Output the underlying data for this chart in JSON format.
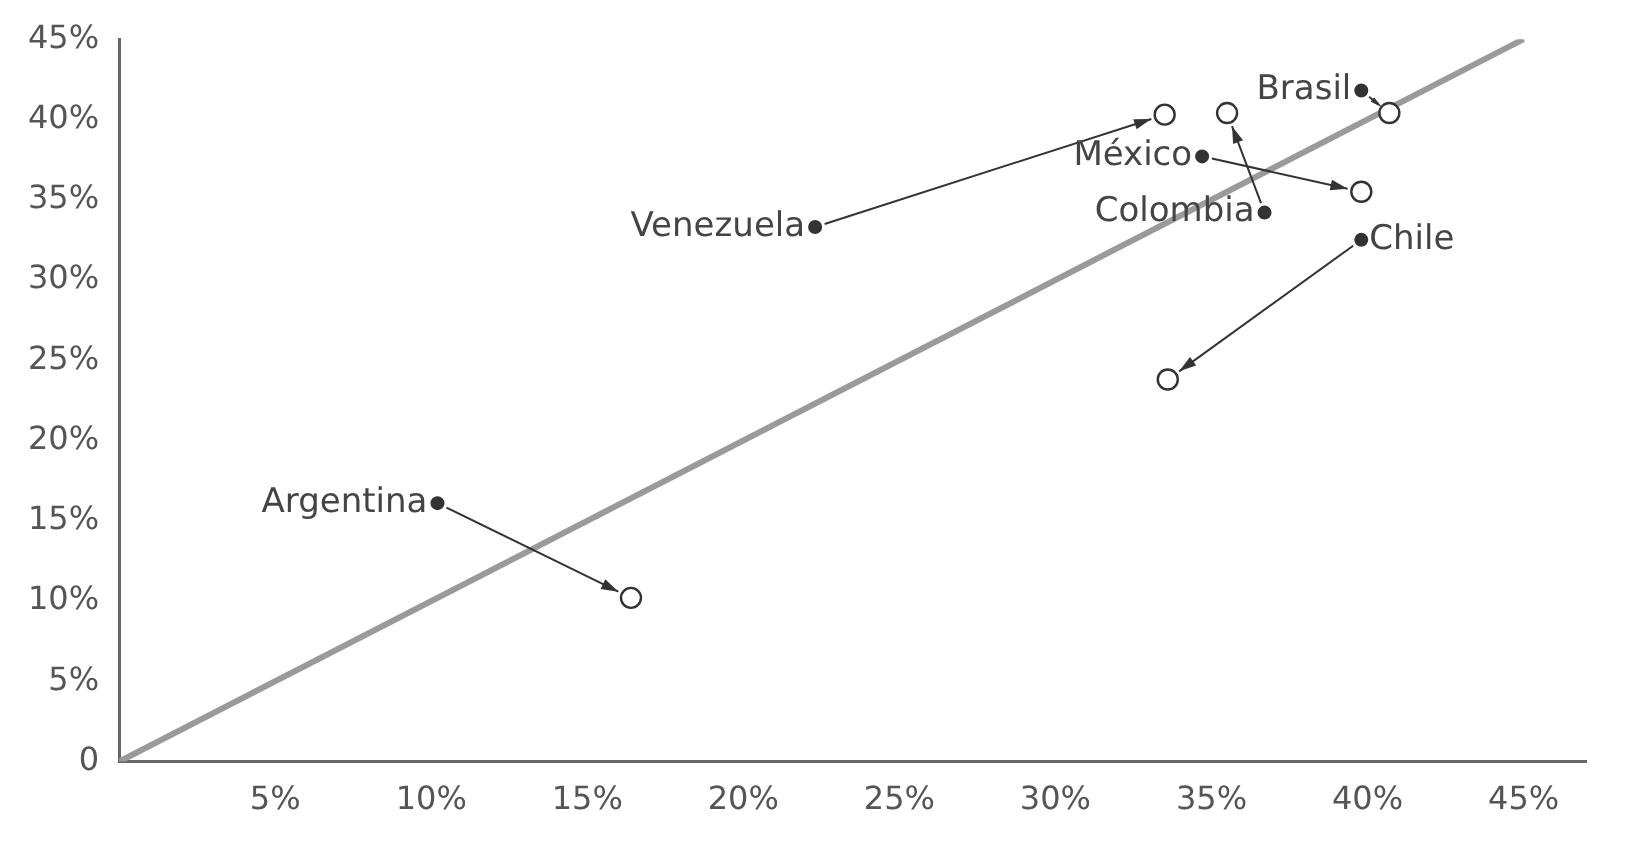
{
  "chart_data": {
    "type": "scatter",
    "grid": false,
    "legend": false,
    "xlim": [
      0,
      47
    ],
    "ylim": [
      0,
      45
    ],
    "xticks": [
      {
        "value": 5,
        "label": "5%"
      },
      {
        "value": 10,
        "label": "10%"
      },
      {
        "value": 15,
        "label": "15%"
      },
      {
        "value": 20,
        "label": "20%"
      },
      {
        "value": 25,
        "label": "25%"
      },
      {
        "value": 30,
        "label": "30%"
      },
      {
        "value": 35,
        "label": "35%"
      },
      {
        "value": 40,
        "label": "40%"
      },
      {
        "value": 45,
        "label": "45%"
      }
    ],
    "yticks": [
      {
        "value": 0,
        "label": "0"
      },
      {
        "value": 5,
        "label": "5%"
      },
      {
        "value": 10,
        "label": "10%"
      },
      {
        "value": 15,
        "label": "15%"
      },
      {
        "value": 20,
        "label": "20%"
      },
      {
        "value": 25,
        "label": "25%"
      },
      {
        "value": 30,
        "label": "30%"
      },
      {
        "value": 35,
        "label": "35%"
      },
      {
        "value": 40,
        "label": "40%"
      },
      {
        "value": 45,
        "label": "45%"
      }
    ],
    "series": [
      {
        "marker": "circle",
        "color": "#333333",
        "x": [
          22.3,
          34.7,
          36.7,
          39.8,
          39.8,
          10.2
        ],
        "values": [
          33.3,
          37.7,
          34.2,
          41.8,
          32.5,
          16.1
        ]
      },
      {
        "marker": "circle",
        "color": "#333333",
        "x": [
          33.5,
          39.8,
          35.5,
          40.7,
          33.6,
          16.4
        ],
        "values": [
          40.3,
          35.5,
          40.4,
          40.4,
          23.8,
          10.2
        ]
      },
      {
        "type": "line",
        "marker": "none",
        "color": "#9a9a9a",
        "x": [
          0,
          45
        ],
        "values": [
          0,
          45
        ]
      }
    ],
    "annotations": [
      {
        "text": "Venezuela",
        "x": 22.3,
        "y": 33.3
      },
      {
        "text": "México",
        "x": 34.7,
        "y": 37.7
      },
      {
        "text": "Colombia",
        "x": 36.7,
        "y": 34.2
      },
      {
        "text": "Brasil",
        "x": 39.8,
        "y": 41.8
      },
      {
        "text": "Chile",
        "x": 39.8,
        "y": 32.5
      },
      {
        "text": "Argentina",
        "x": 10.2,
        "y": 16.1
      }
    ]
  }
}
